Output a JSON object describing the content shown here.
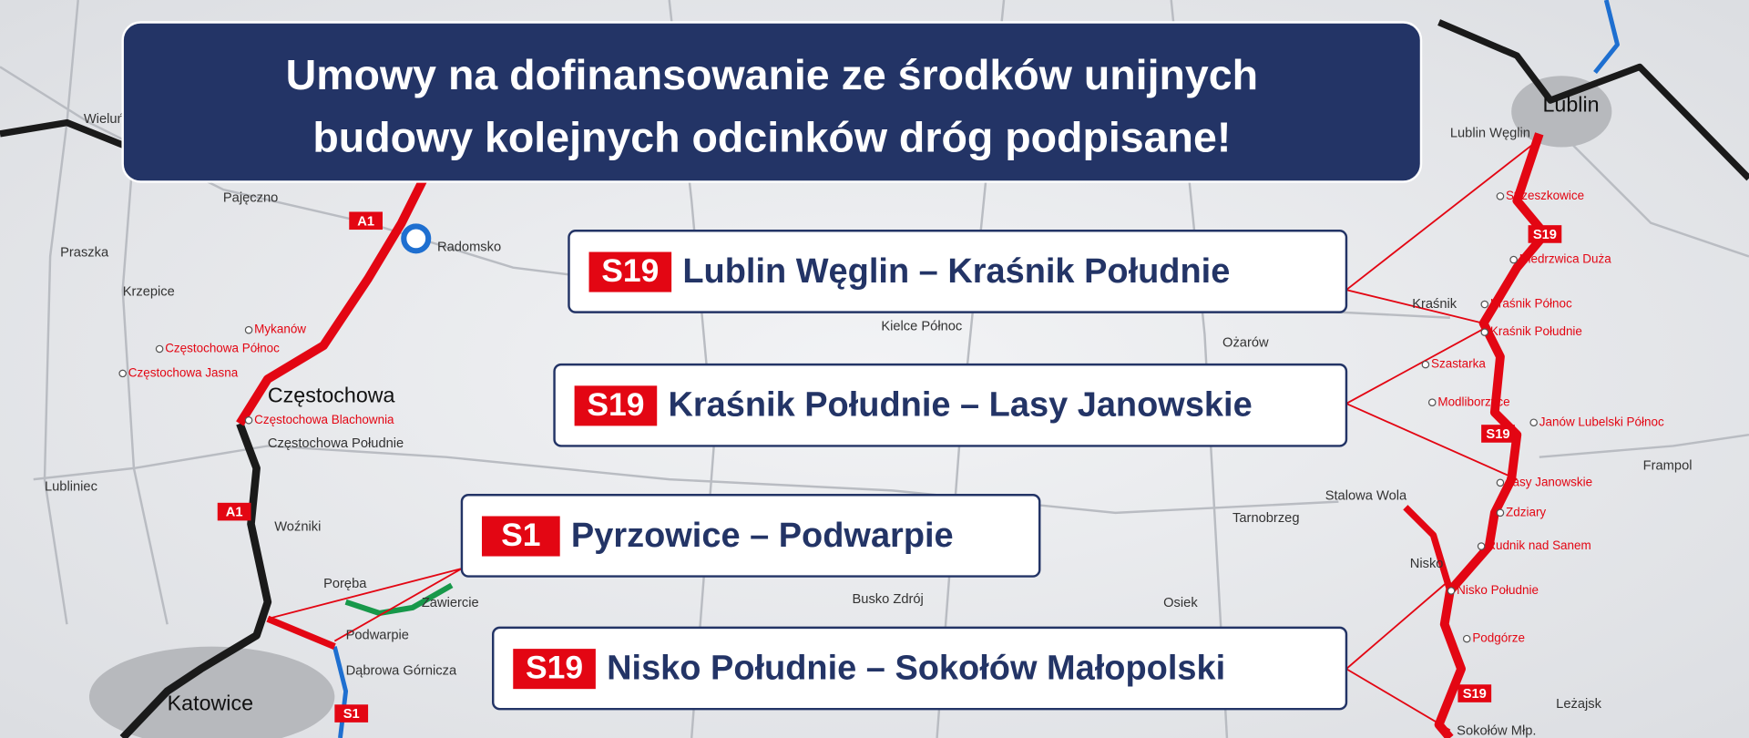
{
  "header": {
    "title_line1": "Umowy na dofinansowanie ze środków unijnych",
    "title_line2": "budowy kolejnych odcinków dróg podpisane!"
  },
  "sections": [
    {
      "road": "S19",
      "label": "Lublin Węglin – Kraśnik Południe"
    },
    {
      "road": "S19",
      "label": "Kraśnik Południe – Lasy Janowskie"
    },
    {
      "road": "S1",
      "label": "Pyrzowice – Podwarpie"
    },
    {
      "road": "S19",
      "label": "Nisko Południe – Sokołów Małopolski"
    }
  ],
  "map": {
    "cities": [
      "Lublin",
      "Katowice",
      "Częstochowa"
    ],
    "places": [
      "Lublin Węglin",
      "Kraśnik",
      "Stalowa Wola",
      "Tarnobrzeg",
      "Nisko",
      "Leżajsk",
      "Frampol",
      "Sokołów Młp.",
      "Radomsko",
      "Pajęczno",
      "Praszka",
      "Krzepice",
      "Lubliniec",
      "Woźniki",
      "Poręba",
      "Zawiercie",
      "Podwarpie",
      "Dąbrowa Górnicza",
      "Wieluń",
      "Częstochowa Południe",
      "Ożarów",
      "Kielce Północ",
      "Busko Zdrój",
      "Osiek"
    ],
    "nodes": [
      "Strzeszkowice",
      "Niedrzwica Duża",
      "Kraśnik Północ",
      "Kraśnik Południe",
      "Szastarka",
      "Modliborzyce",
      "Janów Lubelski Północ",
      "Lasy Janowskie",
      "Zdziary",
      "Rudnik nad Sanem",
      "Nisko Południe",
      "Podgórze",
      "Mykanów",
      "Częstochowa Północ",
      "Częstochowa Jasna",
      "Częstochowa Blachownia"
    ],
    "shields": [
      "A1",
      "A1",
      "S1",
      "S19",
      "S19",
      "S19"
    ]
  }
}
